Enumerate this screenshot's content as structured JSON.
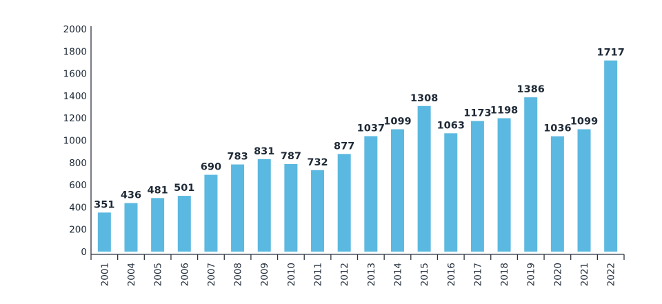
{
  "chart_data": {
    "type": "bar",
    "categories": [
      "2001",
      "2004",
      "2005",
      "2006",
      "2007",
      "2008",
      "2009",
      "2010",
      "2011",
      "2012",
      "2013",
      "2014",
      "2015",
      "2016",
      "2017",
      "2018",
      "2019",
      "2020",
      "2021",
      "2022"
    ],
    "values": [
      351,
      436,
      481,
      501,
      690,
      783,
      831,
      787,
      732,
      877,
      1037,
      1099,
      1308,
      1063,
      1173,
      1198,
      1386,
      1036,
      1099,
      1717
    ],
    "title": "",
    "xlabel": "",
    "ylabel": "",
    "ylim": [
      0,
      2000
    ],
    "yticks": [
      0,
      200,
      400,
      600,
      800,
      1000,
      1200,
      1400,
      1600,
      1800,
      2000
    ],
    "bar_color": "#5bb8e0",
    "grid": false,
    "legend": "none"
  }
}
